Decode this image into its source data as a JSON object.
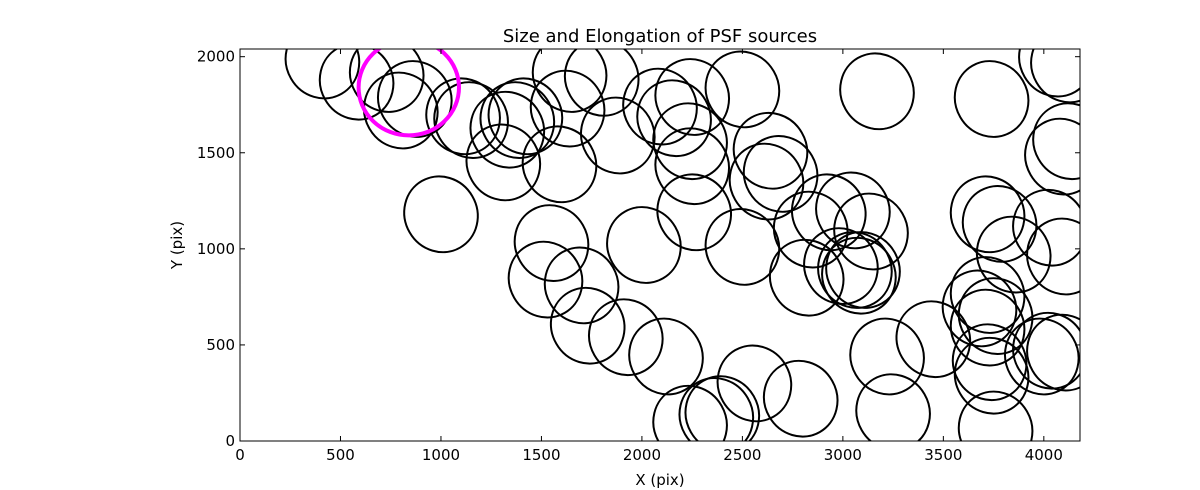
{
  "chart_data": {
    "type": "scatter",
    "marker": "ellipse",
    "title": "Size and Elongation of PSF sources",
    "xlabel": "X (pix)",
    "ylabel": "Y (pix)",
    "xlim": [
      0,
      4180
    ],
    "ylim": [
      0,
      2040
    ],
    "xticks": [
      0,
      500,
      1000,
      1500,
      2000,
      2500,
      3000,
      3500,
      4000
    ],
    "yticks": [
      0,
      500,
      1000,
      1500,
      2000
    ],
    "ellipse_width": 360,
    "ellipse_height": 400,
    "ellipse_angle_deg": -30,
    "colors": {
      "source": "#000000",
      "highlight": "#ff00ff"
    },
    "highlight_source": {
      "x": 840,
      "y": 1840,
      "diameter": 500
    },
    "sources": [
      {
        "x": 410,
        "y": 1980
      },
      {
        "x": 580,
        "y": 1870
      },
      {
        "x": 730,
        "y": 1910
      },
      {
        "x": 800,
        "y": 1720
      },
      {
        "x": 870,
        "y": 1780
      },
      {
        "x": 1110,
        "y": 1690
      },
      {
        "x": 1150,
        "y": 1670
      },
      {
        "x": 1330,
        "y": 1620
      },
      {
        "x": 1380,
        "y": 1670
      },
      {
        "x": 1420,
        "y": 1690
      },
      {
        "x": 1630,
        "y": 1730
      },
      {
        "x": 1640,
        "y": 1910
      },
      {
        "x": 1800,
        "y": 1890
      },
      {
        "x": 1880,
        "y": 1590
      },
      {
        "x": 2090,
        "y": 1740
      },
      {
        "x": 2250,
        "y": 1790
      },
      {
        "x": 2500,
        "y": 1830
      },
      {
        "x": 3170,
        "y": 1820
      },
      {
        "x": 3740,
        "y": 1780
      },
      {
        "x": 4060,
        "y": 1990
      },
      {
        "x": 4120,
        "y": 1960
      },
      {
        "x": 2160,
        "y": 1680
      },
      {
        "x": 2240,
        "y": 1560
      },
      {
        "x": 2250,
        "y": 1430
      },
      {
        "x": 1310,
        "y": 1450
      },
      {
        "x": 1590,
        "y": 1440
      },
      {
        "x": 2640,
        "y": 1510
      },
      {
        "x": 2620,
        "y": 1350
      },
      {
        "x": 2690,
        "y": 1390
      },
      {
        "x": 1000,
        "y": 1180
      },
      {
        "x": 2260,
        "y": 1190
      },
      {
        "x": 2010,
        "y": 1020
      },
      {
        "x": 2500,
        "y": 1010
      },
      {
        "x": 1550,
        "y": 1030
      },
      {
        "x": 1520,
        "y": 840
      },
      {
        "x": 1700,
        "y": 810
      },
      {
        "x": 1730,
        "y": 600
      },
      {
        "x": 1920,
        "y": 540
      },
      {
        "x": 2120,
        "y": 440
      },
      {
        "x": 2840,
        "y": 1100
      },
      {
        "x": 2930,
        "y": 1190
      },
      {
        "x": 3050,
        "y": 1200
      },
      {
        "x": 3140,
        "y": 1090
      },
      {
        "x": 2820,
        "y": 850
      },
      {
        "x": 2990,
        "y": 910
      },
      {
        "x": 3060,
        "y": 890
      },
      {
        "x": 3080,
        "y": 860
      },
      {
        "x": 3100,
        "y": 890
      },
      {
        "x": 3720,
        "y": 1180
      },
      {
        "x": 3780,
        "y": 1130
      },
      {
        "x": 3850,
        "y": 970
      },
      {
        "x": 4030,
        "y": 1110
      },
      {
        "x": 4100,
        "y": 960
      },
      {
        "x": 3450,
        "y": 530
      },
      {
        "x": 3220,
        "y": 440
      },
      {
        "x": 3250,
        "y": 150
      },
      {
        "x": 3680,
        "y": 690
      },
      {
        "x": 3720,
        "y": 760
      },
      {
        "x": 3760,
        "y": 650
      },
      {
        "x": 3720,
        "y": 590
      },
      {
        "x": 3730,
        "y": 410
      },
      {
        "x": 3740,
        "y": 340
      },
      {
        "x": 3990,
        "y": 440
      },
      {
        "x": 4030,
        "y": 470
      },
      {
        "x": 4100,
        "y": 460
      },
      {
        "x": 3760,
        "y": 60
      },
      {
        "x": 4090,
        "y": 1480
      },
      {
        "x": 4130,
        "y": 1560
      },
      {
        "x": 2240,
        "y": 90
      },
      {
        "x": 2370,
        "y": 130
      },
      {
        "x": 2400,
        "y": 140
      },
      {
        "x": 2560,
        "y": 300
      },
      {
        "x": 2790,
        "y": 220
      }
    ]
  }
}
